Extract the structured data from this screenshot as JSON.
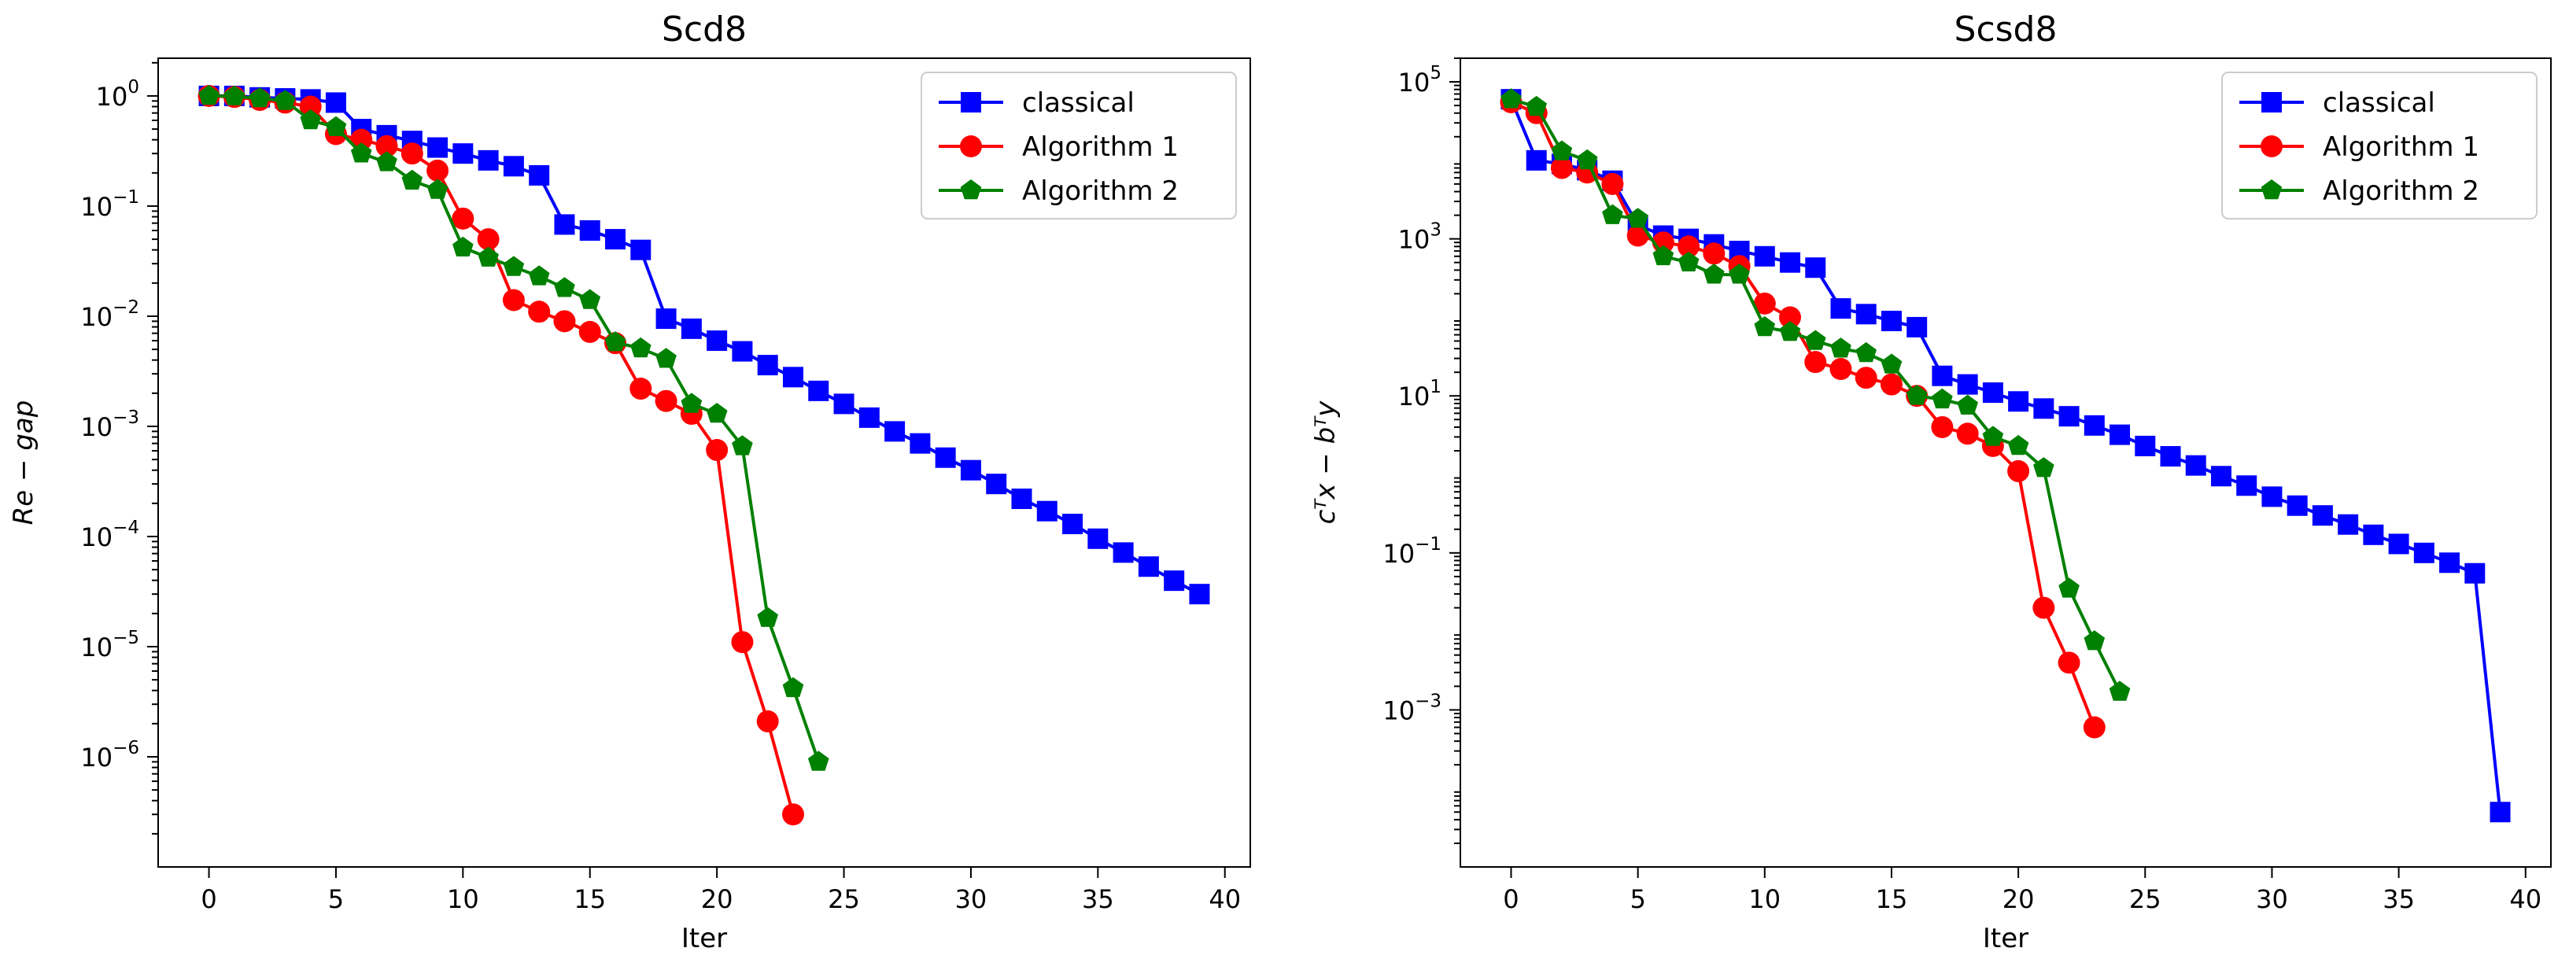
{
  "chart_data": [
    {
      "type": "line",
      "title": "Scd8",
      "xlabel": "Iter",
      "ylabel": "Re − gap",
      "yscale": "log",
      "xlim": [
        -2,
        41
      ],
      "ylim": [
        1e-07,
        2.2
      ],
      "xticks": [
        0,
        5,
        10,
        15,
        20,
        25,
        30,
        35,
        40
      ],
      "yticks": [
        {
          "value": 1,
          "base": "10",
          "exp": "0"
        },
        {
          "value": 0.1,
          "base": "10",
          "exp": "−1"
        },
        {
          "value": 0.01,
          "base": "10",
          "exp": "−2"
        },
        {
          "value": 0.001,
          "base": "10",
          "exp": "−3"
        },
        {
          "value": 0.0001,
          "base": "10",
          "exp": "−4"
        },
        {
          "value": 1e-05,
          "base": "10",
          "exp": "−5"
        },
        {
          "value": 1e-06,
          "base": "10",
          "exp": "−6"
        }
      ],
      "legend_position": "top-right",
      "series": [
        {
          "name": "classical",
          "color": "#0000ff",
          "marker": "square",
          "x": [
            0,
            1,
            2,
            3,
            4,
            5,
            6,
            7,
            8,
            9,
            10,
            11,
            12,
            13,
            14,
            15,
            16,
            17,
            18,
            19,
            20,
            21,
            22,
            23,
            24,
            25,
            26,
            27,
            28,
            29,
            30,
            31,
            32,
            33,
            34,
            35,
            36,
            37,
            38,
            39
          ],
          "y": [
            1.0,
            1.0,
            0.97,
            0.95,
            0.93,
            0.87,
            0.5,
            0.44,
            0.39,
            0.34,
            0.3,
            0.26,
            0.23,
            0.19,
            0.068,
            0.06,
            0.05,
            0.04,
            0.0095,
            0.0077,
            0.006,
            0.0048,
            0.0036,
            0.0028,
            0.0021,
            0.0016,
            0.0012,
            0.0009,
            0.0007,
            0.00052,
            0.0004,
            0.0003,
            0.00022,
            0.00017,
            0.00013,
            9.55e-05,
            7.15e-05,
            5.33e-05,
            3.97e-05,
            3e-05
          ]
        },
        {
          "name": "Algorithm 1",
          "color": "#ff0000",
          "marker": "circle",
          "x": [
            0,
            1,
            2,
            3,
            4,
            5,
            6,
            7,
            8,
            9,
            10,
            11,
            12,
            13,
            14,
            15,
            16,
            17,
            18,
            19,
            20,
            21,
            22,
            23
          ],
          "y": [
            1.0,
            0.98,
            0.92,
            0.87,
            0.8,
            0.45,
            0.4,
            0.35,
            0.3,
            0.21,
            0.077,
            0.05,
            0.014,
            0.011,
            0.009,
            0.0072,
            0.0057,
            0.0022,
            0.0017,
            0.0013,
            0.00061,
            1.1e-05,
            2.1e-06,
            3e-07
          ]
        },
        {
          "name": "Algorithm 2",
          "color": "#008000",
          "marker": "pentagon",
          "x": [
            0,
            1,
            2,
            3,
            4,
            5,
            6,
            7,
            8,
            9,
            10,
            11,
            12,
            13,
            14,
            15,
            16,
            17,
            18,
            19,
            20,
            21,
            22,
            23,
            24
          ],
          "y": [
            1.0,
            0.99,
            0.95,
            0.9,
            0.6,
            0.52,
            0.3,
            0.25,
            0.17,
            0.14,
            0.042,
            0.034,
            0.028,
            0.023,
            0.018,
            0.014,
            0.0058,
            0.0051,
            0.0041,
            0.0016,
            0.0013,
            0.00066,
            1.82e-05,
            4.2e-06,
            9e-07
          ]
        }
      ]
    },
    {
      "type": "line",
      "title": "Scsd8",
      "xlabel": "Iter",
      "ylabel": "cᵀx − bᵀy",
      "yscale": "log",
      "xlim": [
        -2,
        41
      ],
      "ylim": [
        1e-05,
        200000
      ],
      "xticks": [
        0,
        5,
        10,
        15,
        20,
        25,
        30,
        35,
        40
      ],
      "yticks": [
        {
          "value": 100000,
          "base": "10",
          "exp": "5"
        },
        {
          "value": 1000,
          "base": "10",
          "exp": "3"
        },
        {
          "value": 10,
          "base": "10",
          "exp": "1"
        },
        {
          "value": 0.1,
          "base": "10",
          "exp": "−1"
        },
        {
          "value": 0.001,
          "base": "10",
          "exp": "−3"
        }
      ],
      "legend_position": "top-right",
      "series": [
        {
          "name": "classical",
          "color": "#0000ff",
          "marker": "square",
          "x": [
            0,
            1,
            2,
            3,
            4,
            5,
            6,
            7,
            8,
            9,
            10,
            11,
            12,
            13,
            14,
            15,
            16,
            17,
            18,
            19,
            20,
            21,
            22,
            23,
            24,
            25,
            26,
            27,
            28,
            29,
            30,
            31,
            32,
            33,
            34,
            35,
            36,
            37,
            38,
            39
          ],
          "y": [
            60000,
            10000,
            9000,
            7500,
            5500,
            1500,
            1100,
            1000,
            850,
            700,
            600,
            500,
            430,
            130,
            110,
            90,
            75,
            18,
            14,
            11,
            8.5,
            6.9,
            5.5,
            4.2,
            3.2,
            2.3,
            1.7,
            1.3,
            0.95,
            0.72,
            0.52,
            0.4,
            0.3,
            0.23,
            0.17,
            0.13,
            0.1,
            0.075,
            0.055,
            5e-05
          ]
        },
        {
          "name": "Algorithm 1",
          "color": "#ff0000",
          "marker": "circle",
          "x": [
            0,
            1,
            2,
            3,
            4,
            5,
            6,
            7,
            8,
            9,
            10,
            11,
            12,
            13,
            14,
            15,
            16,
            17,
            18,
            19,
            20,
            21,
            22,
            23
          ],
          "y": [
            55000,
            40000,
            8000,
            7000,
            5000,
            1100,
            900,
            800,
            650,
            450,
            150,
            100,
            27,
            22,
            17,
            14,
            10,
            4,
            3.3,
            2.3,
            1.1,
            0.02,
            0.004,
            0.0006
          ]
        },
        {
          "name": "Algorithm 2",
          "color": "#008000",
          "marker": "pentagon",
          "x": [
            0,
            1,
            2,
            3,
            4,
            5,
            6,
            7,
            8,
            9,
            10,
            11,
            12,
            13,
            14,
            15,
            16,
            17,
            18,
            19,
            20,
            21,
            22,
            23,
            24
          ],
          "y": [
            60000,
            48000,
            13000,
            10000,
            2000,
            1800,
            600,
            500,
            350,
            350,
            75,
            65,
            50,
            40,
            35,
            25,
            10,
            9,
            7.5,
            3,
            2.3,
            1.2,
            0.035,
            0.0075,
            0.0017
          ]
        }
      ]
    }
  ]
}
